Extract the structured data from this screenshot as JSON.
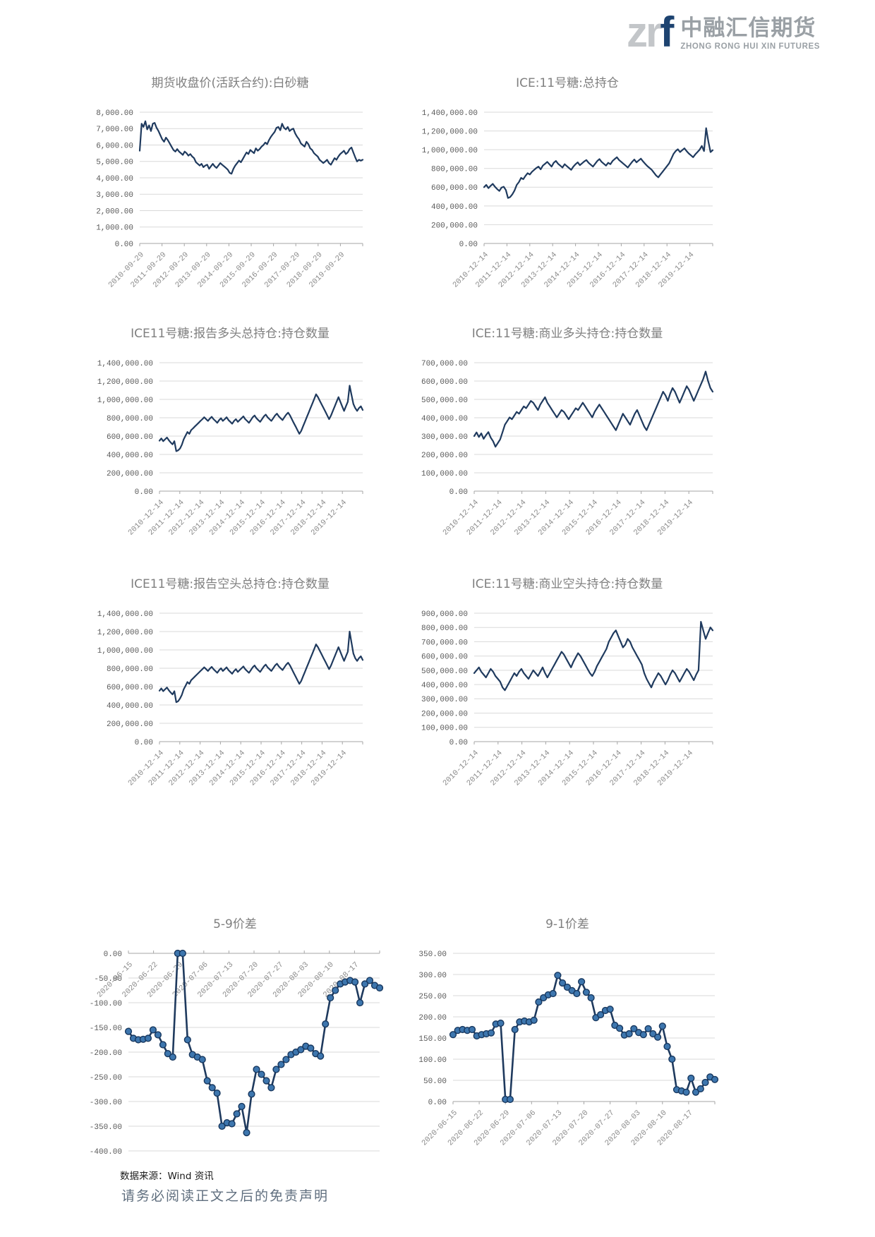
{
  "logo": {
    "mark_gray": "zr",
    "mark_blue": "f",
    "company_cn": "中融汇信期货",
    "company_en": "ZHONG RONG HUI XIN FUTURES"
  },
  "colors": {
    "line": "#1f3a5e",
    "marker_fill": "#3d76ae",
    "marker_stroke": "#17375e",
    "grid": "#d9d9d9",
    "axis": "#a6a6a6",
    "tick_label": "#595959",
    "x_label": "#8c8c8c",
    "title": "#7f7f7f",
    "brand_blue": "#1d4370",
    "brand_gray": "#c3c6c9",
    "brand_text": "#9aa0a5"
  },
  "footer": {
    "source": "数据来源：Wind 资讯",
    "disclaimer": "请务必阅读正文之后的免责声明"
  },
  "chart_data": [
    {
      "type": "line",
      "title": "期货收盘价(活跃合约):白砂糖",
      "xlabel": "",
      "ylabel": "",
      "ylim": [
        0,
        8000
      ],
      "ytick": 1000,
      "grid": true,
      "markers": false,
      "x_labels": [
        "2010-09-29",
        "2011-09-29",
        "2012-09-29",
        "2013-09-29",
        "2014-09-29",
        "2015-09-29",
        "2016-09-29",
        "2017-09-29",
        "2018-09-29",
        "2019-09-29"
      ],
      "values": [
        5650,
        7300,
        7100,
        7450,
        6950,
        7200,
        6850,
        7300,
        7350,
        7050,
        6850,
        6600,
        6350,
        6200,
        6450,
        6300,
        6100,
        5900,
        5700,
        5600,
        5750,
        5600,
        5500,
        5400,
        5600,
        5500,
        5350,
        5450,
        5300,
        5200,
        4950,
        4850,
        4750,
        4850,
        4650,
        4750,
        4800,
        4550,
        4700,
        4850,
        4700,
        4600,
        4750,
        4900,
        4800,
        4700,
        4600,
        4500,
        4300,
        4250,
        4550,
        4750,
        4900,
        5050,
        4950,
        5150,
        5350,
        5550,
        5450,
        5700,
        5600,
        5500,
        5800,
        5650,
        5750,
        5900,
        6000,
        6150,
        6050,
        6300,
        6500,
        6650,
        6800,
        7050,
        7100,
        6900,
        7300,
        7050,
        6950,
        7100,
        6850,
        6950,
        7000,
        6700,
        6500,
        6350,
        6100,
        6000,
        5900,
        6200,
        6050,
        5800,
        5700,
        5500,
        5400,
        5300,
        5100,
        5000,
        4900,
        5000,
        5100,
        4900,
        4800,
        5000,
        5200,
        5100,
        5300,
        5450,
        5550,
        5650,
        5450,
        5550,
        5750,
        5850,
        5550,
        5250,
        5000,
        5100,
        5050,
        5100
      ]
    },
    {
      "type": "line",
      "title": "ICE:11号糖:总持仓",
      "xlabel": "",
      "ylabel": "",
      "ylim": [
        0,
        1400000
      ],
      "ytick": 200000,
      "grid": true,
      "markers": false,
      "x_labels": [
        "2010-12-14",
        "2011-12-14",
        "2012-12-14",
        "2013-12-14",
        "2014-12-14",
        "2015-12-14",
        "2016-12-14",
        "2017-12-14",
        "2018-12-14",
        "2019-12-14"
      ],
      "values": [
        600000,
        625000,
        590000,
        615000,
        635000,
        605000,
        580000,
        560000,
        595000,
        605000,
        570000,
        485000,
        495000,
        525000,
        565000,
        625000,
        655000,
        700000,
        685000,
        720000,
        750000,
        735000,
        765000,
        785000,
        805000,
        820000,
        790000,
        830000,
        850000,
        870000,
        845000,
        820000,
        860000,
        880000,
        850000,
        830000,
        810000,
        845000,
        825000,
        805000,
        785000,
        820000,
        845000,
        865000,
        835000,
        855000,
        875000,
        890000,
        860000,
        840000,
        820000,
        850000,
        880000,
        900000,
        870000,
        850000,
        830000,
        860000,
        845000,
        880000,
        900000,
        920000,
        890000,
        870000,
        850000,
        830000,
        810000,
        840000,
        870000,
        895000,
        865000,
        885000,
        905000,
        875000,
        850000,
        825000,
        805000,
        785000,
        755000,
        725000,
        705000,
        735000,
        765000,
        795000,
        825000,
        855000,
        905000,
        955000,
        985000,
        1005000,
        975000,
        995000,
        1015000,
        985000,
        960000,
        940000,
        920000,
        950000,
        975000,
        1000000,
        1040000,
        985000,
        1230000,
        1090000,
        975000,
        995000
      ]
    },
    {
      "type": "line",
      "title": "ICE11号糖:报告多头总持仓:持仓数量",
      "xlabel": "",
      "ylabel": "",
      "ylim": [
        0,
        1400000
      ],
      "ytick": 200000,
      "grid": true,
      "markers": false,
      "x_labels": [
        "2010-12-14",
        "2011-12-14",
        "2012-12-14",
        "2013-12-14",
        "2014-12-14",
        "2015-12-14",
        "2016-12-14",
        "2017-12-14",
        "2018-12-14",
        "2019-12-14"
      ],
      "values": [
        550000,
        575000,
        545000,
        565000,
        585000,
        555000,
        530000,
        510000,
        545000,
        435000,
        445000,
        465000,
        505000,
        565000,
        605000,
        645000,
        625000,
        665000,
        685000,
        705000,
        725000,
        745000,
        765000,
        785000,
        805000,
        785000,
        765000,
        790000,
        810000,
        785000,
        765000,
        745000,
        775000,
        795000,
        765000,
        785000,
        805000,
        775000,
        755000,
        735000,
        765000,
        785000,
        755000,
        775000,
        795000,
        815000,
        785000,
        765000,
        745000,
        775000,
        805000,
        825000,
        795000,
        775000,
        755000,
        785000,
        815000,
        835000,
        805000,
        785000,
        765000,
        795000,
        825000,
        845000,
        815000,
        795000,
        775000,
        805000,
        835000,
        855000,
        825000,
        785000,
        745000,
        705000,
        665000,
        625000,
        655000,
        705000,
        755000,
        805000,
        855000,
        905000,
        955000,
        1005000,
        1055000,
        1025000,
        985000,
        945000,
        905000,
        865000,
        825000,
        785000,
        825000,
        875000,
        925000,
        975000,
        1025000,
        975000,
        925000,
        875000,
        925000,
        975000,
        1150000,
        1050000,
        950000,
        905000,
        875000,
        905000,
        925000,
        885000
      ]
    },
    {
      "type": "line",
      "title": "ICE:11号糖:商业多头持仓:持仓数量",
      "xlabel": "",
      "ylabel": "",
      "ylim": [
        0,
        700000
      ],
      "ytick": 100000,
      "grid": true,
      "markers": false,
      "x_labels": [
        "2010-12-14",
        "2011-12-14",
        "2012-12-14",
        "2013-12-14",
        "2014-12-14",
        "2015-12-14",
        "2016-12-14",
        "2017-12-14",
        "2018-12-14",
        "2019-12-14"
      ],
      "values": [
        300000,
        320000,
        295000,
        315000,
        285000,
        305000,
        322000,
        292000,
        272000,
        242000,
        262000,
        282000,
        322000,
        362000,
        382000,
        402000,
        392000,
        412000,
        432000,
        422000,
        442000,
        462000,
        452000,
        472000,
        492000,
        482000,
        462000,
        442000,
        472000,
        492000,
        512000,
        482000,
        462000,
        442000,
        422000,
        402000,
        422000,
        442000,
        432000,
        412000,
        392000,
        412000,
        432000,
        452000,
        442000,
        462000,
        482000,
        462000,
        442000,
        422000,
        402000,
        432000,
        452000,
        472000,
        452000,
        432000,
        412000,
        392000,
        372000,
        352000,
        332000,
        362000,
        392000,
        422000,
        402000,
        382000,
        362000,
        392000,
        422000,
        442000,
        412000,
        382000,
        352000,
        332000,
        362000,
        392000,
        422000,
        452000,
        482000,
        512000,
        542000,
        522000,
        492000,
        532000,
        562000,
        542000,
        512000,
        482000,
        512000,
        542000,
        572000,
        552000,
        522000,
        492000,
        522000,
        552000,
        582000,
        612000,
        652000,
        602000,
        562000,
        542000
      ]
    },
    {
      "type": "line",
      "title": "ICE11号糖:报告空头总持仓:持仓数量",
      "xlabel": "",
      "ylabel": "",
      "ylim": [
        0,
        1400000
      ],
      "ytick": 200000,
      "grid": true,
      "markers": false,
      "x_labels": [
        "2010-12-14",
        "2011-12-14",
        "2012-12-14",
        "2013-12-14",
        "2014-12-14",
        "2015-12-14",
        "2016-12-14",
        "2017-12-14",
        "2018-12-14",
        "2019-12-14"
      ],
      "values": [
        555000,
        580000,
        550000,
        570000,
        590000,
        560000,
        535000,
        515000,
        550000,
        430000,
        440000,
        470000,
        510000,
        570000,
        610000,
        650000,
        630000,
        670000,
        690000,
        710000,
        730000,
        750000,
        770000,
        790000,
        810000,
        790000,
        770000,
        795000,
        815000,
        790000,
        770000,
        750000,
        780000,
        800000,
        770000,
        790000,
        810000,
        780000,
        760000,
        740000,
        770000,
        790000,
        760000,
        780000,
        800000,
        820000,
        790000,
        770000,
        750000,
        780000,
        810000,
        830000,
        800000,
        780000,
        760000,
        790000,
        820000,
        840000,
        810000,
        790000,
        770000,
        800000,
        830000,
        850000,
        820000,
        800000,
        780000,
        810000,
        840000,
        860000,
        830000,
        790000,
        750000,
        710000,
        670000,
        630000,
        660000,
        710000,
        760000,
        810000,
        860000,
        910000,
        960000,
        1010000,
        1060000,
        1030000,
        990000,
        950000,
        910000,
        870000,
        830000,
        790000,
        830000,
        880000,
        930000,
        980000,
        1030000,
        980000,
        930000,
        880000,
        930000,
        980000,
        1200000,
        1080000,
        960000,
        910000,
        880000,
        910000,
        930000,
        890000
      ]
    },
    {
      "type": "line",
      "title": "ICE:11号糖:商业空头持仓:持仓数量",
      "xlabel": "",
      "ylabel": "",
      "ylim": [
        0,
        900000
      ],
      "ytick": 100000,
      "grid": true,
      "markers": false,
      "x_labels": [
        "2010-12-14",
        "2011-12-14",
        "2012-12-14",
        "2013-12-14",
        "2014-12-14",
        "2015-12-14",
        "2016-12-14",
        "2017-12-14",
        "2018-12-14",
        "2019-12-14"
      ],
      "values": [
        480000,
        500000,
        520000,
        490000,
        470000,
        450000,
        480000,
        510000,
        490000,
        460000,
        440000,
        420000,
        380000,
        360000,
        390000,
        420000,
        450000,
        480000,
        460000,
        490000,
        510000,
        480000,
        460000,
        440000,
        470000,
        500000,
        480000,
        460000,
        490000,
        520000,
        480000,
        450000,
        480000,
        510000,
        540000,
        570000,
        600000,
        630000,
        610000,
        580000,
        550000,
        520000,
        560000,
        590000,
        620000,
        600000,
        570000,
        540000,
        510000,
        480000,
        460000,
        490000,
        530000,
        560000,
        590000,
        620000,
        650000,
        700000,
        730000,
        760000,
        780000,
        740000,
        700000,
        660000,
        680000,
        720000,
        700000,
        660000,
        630000,
        600000,
        570000,
        540000,
        480000,
        440000,
        410000,
        380000,
        420000,
        450000,
        480000,
        460000,
        430000,
        400000,
        430000,
        470000,
        500000,
        480000,
        450000,
        420000,
        450000,
        480000,
        510000,
        490000,
        460000,
        430000,
        470000,
        500000,
        840000,
        780000,
        720000,
        760000,
        800000,
        780000
      ]
    },
    {
      "type": "line",
      "title": "5-9价差",
      "xlabel": "",
      "ylabel": "",
      "ylim": [
        -400,
        0
      ],
      "ytick": 50,
      "grid": true,
      "markers": true,
      "x_labels": [
        "2020-06-15",
        "2020-06-22",
        "2020-06-29",
        "2020-07-06",
        "2020-07-13",
        "2020-07-20",
        "2020-07-27",
        "2020-08-03",
        "2020-08-10",
        "2020-08-17"
      ],
      "values": [
        -158,
        -172,
        -175,
        -174,
        -172,
        -155,
        -165,
        -185,
        -203,
        -210,
        0,
        0,
        -175,
        -205,
        -210,
        -215,
        -258,
        -272,
        -283,
        -350,
        -343,
        -345,
        -325,
        -310,
        -363,
        -285,
        -235,
        -245,
        -258,
        -272,
        -235,
        -225,
        -215,
        -205,
        -200,
        -195,
        -188,
        -192,
        -203,
        -208,
        -143,
        -90,
        -75,
        -62,
        -58,
        -55,
        -58,
        -100,
        -62,
        -55,
        -65,
        -70
      ]
    },
    {
      "type": "line",
      "title": "9-1价差",
      "xlabel": "",
      "ylabel": "",
      "ylim": [
        0,
        350
      ],
      "ytick": 50,
      "grid": true,
      "markers": true,
      "x_labels": [
        "2020-06-15",
        "2020-06-22",
        "2020-06-29",
        "2020-07-06",
        "2020-07-13",
        "2020-07-20",
        "2020-07-27",
        "2020-08-03",
        "2020-08-10",
        "2020-08-17"
      ],
      "values": [
        158,
        168,
        170,
        168,
        170,
        155,
        158,
        160,
        162,
        183,
        185,
        5,
        5,
        170,
        188,
        190,
        188,
        192,
        235,
        245,
        252,
        255,
        298,
        280,
        270,
        262,
        255,
        283,
        258,
        245,
        198,
        205,
        215,
        218,
        180,
        173,
        157,
        160,
        172,
        163,
        158,
        172,
        160,
        152,
        178,
        130,
        100,
        28,
        25,
        22,
        55,
        22,
        30,
        45,
        58,
        52
      ]
    }
  ]
}
